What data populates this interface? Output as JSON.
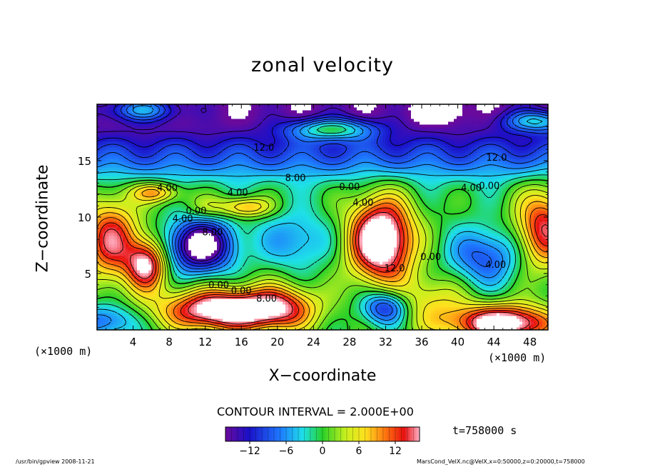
{
  "chart_data": {
    "type": "heatmap",
    "title": "zonal velocity",
    "xlabel": "X−coordinate",
    "ylabel": "Z−coordinate",
    "x_unit_left": "(×1000 m)",
    "x_unit_right": "(×1000 m)",
    "xlim": [
      0,
      50
    ],
    "ylim": [
      0,
      20
    ],
    "x_ticks": [
      4,
      8,
      12,
      16,
      20,
      24,
      28,
      32,
      36,
      40,
      44,
      48
    ],
    "y_ticks": [
      5,
      10,
      15
    ],
    "contour_interval_text": "CONTOUR INTERVAL = 2.000E+00",
    "time_text": "t=758000  s",
    "colorbar": {
      "min": -16,
      "max": 16,
      "ticks": [
        -12,
        -6,
        0,
        6,
        12
      ],
      "tick_labels": [
        "−12",
        "−6",
        "0",
        "6",
        "12"
      ]
    },
    "contour_labels": [
      {
        "text": "12.0",
        "x": 18.5,
        "z": 15.9
      },
      {
        "text": "12.0",
        "x": 44.3,
        "z": 15.0
      },
      {
        "text": "8.00",
        "x": 22.0,
        "z": 13.2
      },
      {
        "text": "4.00",
        "x": 7.8,
        "z": 12.3
      },
      {
        "text": "4.00",
        "x": 15.6,
        "z": 11.9
      },
      {
        "text": "0.00",
        "x": 28.0,
        "z": 12.4
      },
      {
        "text": "4.00",
        "x": 41.5,
        "z": 12.3
      },
      {
        "text": "0.00",
        "x": 43.5,
        "z": 12.5
      },
      {
        "text": "0.00",
        "x": 11.0,
        "z": 10.3
      },
      {
        "text": "4.00",
        "x": 9.5,
        "z": 9.6
      },
      {
        "text": "8.00",
        "x": 12.8,
        "z": 8.4
      },
      {
        "text": "4.00",
        "x": 29.5,
        "z": 11.0
      },
      {
        "text": "0.00",
        "x": 37.0,
        "z": 6.2
      },
      {
        "text": "4.00",
        "x": 44.2,
        "z": 5.5
      },
      {
        "text": "12.0",
        "x": 33.0,
        "z": 5.2
      },
      {
        "text": "0.00",
        "x": 13.5,
        "z": 3.7
      },
      {
        "text": "0.00",
        "x": 16.0,
        "z": 3.2
      },
      {
        "text": "8.00",
        "x": 18.8,
        "z": 2.5
      }
    ],
    "footer_left": "/usr/bin/gpview   2008-11-21",
    "footer_right": "MarsCond_VelX.nc@VelX,x=0:50000,z=0:20000,t=758000"
  }
}
